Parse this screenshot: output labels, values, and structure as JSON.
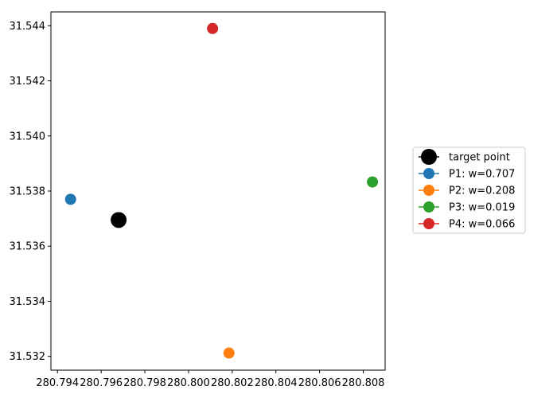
{
  "chart_data": {
    "type": "scatter",
    "title": "",
    "xlabel": "",
    "ylabel": "",
    "xlim": [
      280.7937,
      280.809
    ],
    "ylim": [
      31.5315,
      31.5445
    ],
    "xticks": [
      280.794,
      280.796,
      280.798,
      280.8,
      280.802,
      280.804,
      280.806,
      280.808
    ],
    "xtick_labels": [
      "280.794",
      "280.796",
      "280.798",
      "280.800",
      "280.802",
      "280.804",
      "280.806",
      "280.808"
    ],
    "yticks": [
      31.532,
      31.534,
      31.536,
      31.538,
      31.54,
      31.542,
      31.544
    ],
    "ytick_labels": [
      "31.532",
      "31.534",
      "31.536",
      "31.538",
      "31.540",
      "31.542",
      "31.544"
    ],
    "grid": false,
    "legend_position": "right",
    "series": [
      {
        "name": "target point",
        "x": 280.7968,
        "y": 31.53695,
        "color": "#000000",
        "size": "large"
      },
      {
        "name": "P1: w=0.707",
        "x": 280.7946,
        "y": 31.5377,
        "color": "#1f77b4",
        "size": "normal"
      },
      {
        "name": "P2: w=0.208",
        "x": 280.80185,
        "y": 31.53212,
        "color": "#ff7f0e",
        "size": "normal"
      },
      {
        "name": "P3: w=0.019",
        "x": 280.80842,
        "y": 31.53833,
        "color": "#2ca02c",
        "size": "normal"
      },
      {
        "name": "P4: w=0.066",
        "x": 280.8011,
        "y": 31.5439,
        "color": "#d62728",
        "size": "normal"
      }
    ]
  }
}
